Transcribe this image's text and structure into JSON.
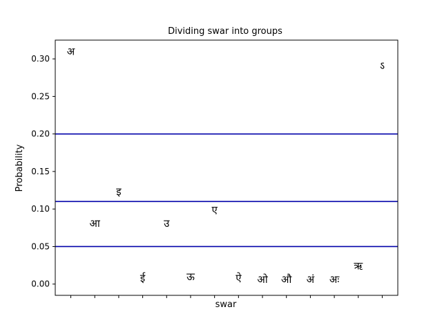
{
  "chart_data": {
    "type": "scatter",
    "title": "Dividing swar into groups",
    "xlabel": "swar",
    "ylabel": "Probability",
    "ylim": [
      -0.015,
      0.325
    ],
    "yticks": [
      0.0,
      0.05,
      0.1,
      0.15,
      0.2,
      0.25,
      0.3
    ],
    "ytick_labels": [
      "0.00",
      "0.05",
      "0.10",
      "0.15",
      "0.20",
      "0.25",
      "0.30"
    ],
    "x_tick_count": 14,
    "x_tick_labels_shown": false,
    "grid": false,
    "points": [
      {
        "label": "अ",
        "x": 0,
        "y": 0.31
      },
      {
        "label": "आ",
        "x": 1,
        "y": 0.081
      },
      {
        "label": "इ",
        "x": 2,
        "y": 0.123
      },
      {
        "label": "ई",
        "x": 3,
        "y": 0.008
      },
      {
        "label": "उ",
        "x": 4,
        "y": 0.081
      },
      {
        "label": "ऊ",
        "x": 5,
        "y": 0.01
      },
      {
        "label": "ए",
        "x": 6,
        "y": 0.099
      },
      {
        "label": "ऐ",
        "x": 7,
        "y": 0.008
      },
      {
        "label": "ओ",
        "x": 8,
        "y": 0.006
      },
      {
        "label": "औ",
        "x": 9,
        "y": 0.006
      },
      {
        "label": "अं",
        "x": 10,
        "y": 0.006
      },
      {
        "label": "अः",
        "x": 11,
        "y": 0.006
      },
      {
        "label": "ऋ",
        "x": 12,
        "y": 0.024
      },
      {
        "label": "ऽ",
        "x": 13,
        "y": 0.291
      }
    ],
    "hlines": [
      {
        "y": 0.2,
        "color": "#0000aa"
      },
      {
        "y": 0.11,
        "color": "#0000aa"
      },
      {
        "y": 0.05,
        "color": "#0000aa"
      }
    ]
  }
}
